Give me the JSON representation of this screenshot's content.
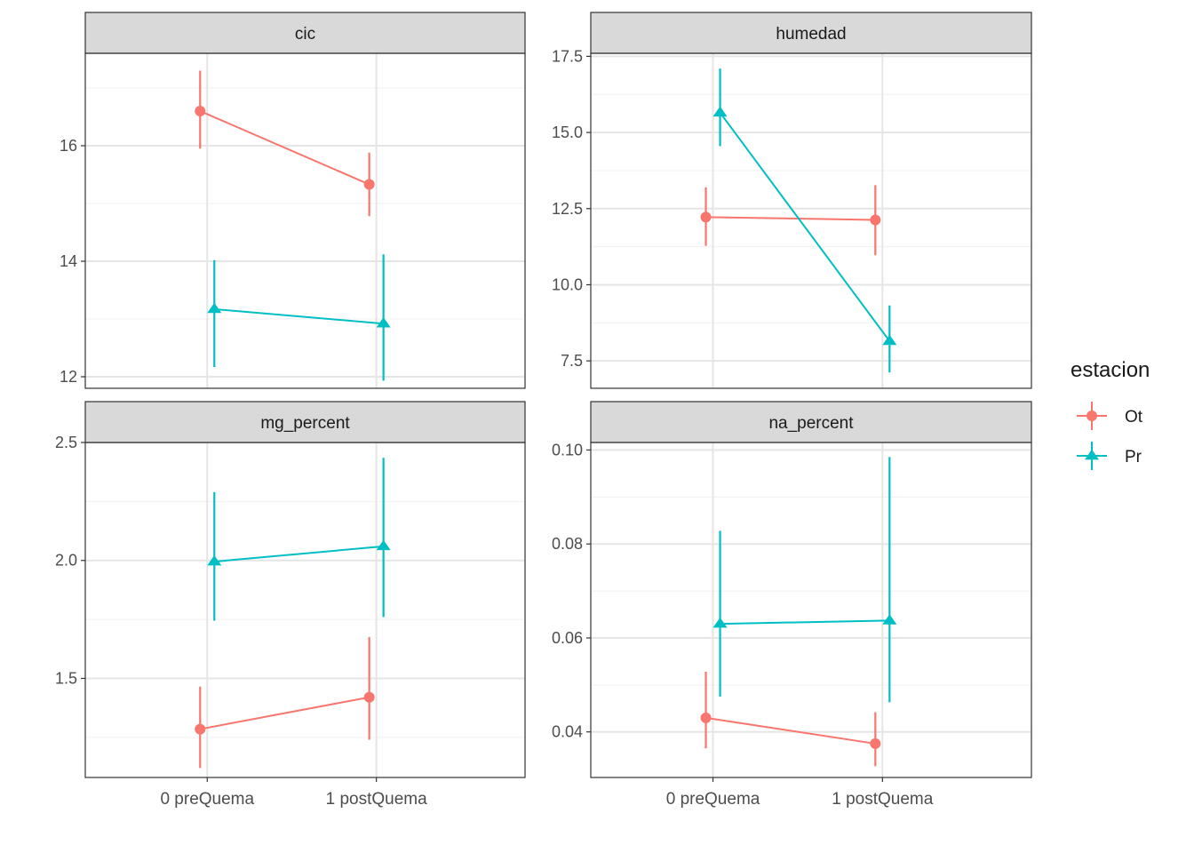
{
  "chart_data": {
    "type": "line",
    "layout": "facet-grid 2x2",
    "x_categories": [
      "0 preQuema",
      "1 postQuema"
    ],
    "legend": {
      "title": "estacion",
      "placement": "right",
      "entries": [
        {
          "name": "Ot",
          "color": "#F8766D",
          "shape": "circle"
        },
        {
          "name": "Pr",
          "color": "#00BFC4",
          "shape": "triangle"
        }
      ]
    },
    "grid": true,
    "panels": [
      {
        "title": "cic",
        "ylim": [
          11.8,
          17.6
        ],
        "y_ticks": [
          12,
          14,
          16
        ],
        "y_tick_labels": [
          "12",
          "14",
          "16"
        ],
        "show_x_axis": false,
        "series": [
          {
            "name": "Ot",
            "points": [
              {
                "x": "0 preQuema",
                "y": 16.6,
                "ymin": 15.95,
                "ymax": 17.3
              },
              {
                "x": "1 postQuema",
                "y": 15.33,
                "ymin": 14.78,
                "ymax": 15.88
              }
            ]
          },
          {
            "name": "Pr",
            "points": [
              {
                "x": "0 preQuema",
                "y": 13.17,
                "ymin": 12.17,
                "ymax": 14.02
              },
              {
                "x": "1 postQuema",
                "y": 12.92,
                "ymin": 11.93,
                "ymax": 14.12
              }
            ]
          }
        ]
      },
      {
        "title": "humedad",
        "ylim": [
          6.6,
          17.6
        ],
        "y_ticks": [
          7.5,
          10.0,
          12.5,
          15.0,
          17.5
        ],
        "y_tick_labels": [
          "7.5",
          "10.0",
          "12.5",
          "15.0",
          "17.5"
        ],
        "show_x_axis": false,
        "series": [
          {
            "name": "Ot",
            "points": [
              {
                "x": "0 preQuema",
                "y": 12.22,
                "ymin": 11.28,
                "ymax": 13.2
              },
              {
                "x": "1 postQuema",
                "y": 12.13,
                "ymin": 10.97,
                "ymax": 13.27
              }
            ]
          },
          {
            "name": "Pr",
            "points": [
              {
                "x": "0 preQuema",
                "y": 15.65,
                "ymin": 14.55,
                "ymax": 17.1
              },
              {
                "x": "1 postQuema",
                "y": 8.15,
                "ymin": 7.12,
                "ymax": 9.32
              }
            ]
          }
        ]
      },
      {
        "title": "mg_percent",
        "ylim": [
          1.08,
          2.5
        ],
        "y_ticks": [
          1.5,
          2.0,
          2.5
        ],
        "y_tick_labels": [
          "1.5",
          "2.0",
          "2.5"
        ],
        "show_x_axis": true,
        "series": [
          {
            "name": "Ot",
            "points": [
              {
                "x": "0 preQuema",
                "y": 1.285,
                "ymin": 1.12,
                "ymax": 1.465
              },
              {
                "x": "1 postQuema",
                "y": 1.42,
                "ymin": 1.24,
                "ymax": 1.675
              }
            ]
          },
          {
            "name": "Pr",
            "points": [
              {
                "x": "0 preQuema",
                "y": 1.995,
                "ymin": 1.745,
                "ymax": 2.29
              },
              {
                "x": "1 postQuema",
                "y": 2.06,
                "ymin": 1.76,
                "ymax": 2.435
              }
            ]
          }
        ]
      },
      {
        "title": "na_percent",
        "ylim": [
          0.0303,
          0.1016
        ],
        "y_ticks": [
          0.04,
          0.06,
          0.08,
          0.1
        ],
        "y_tick_labels": [
          "0.04",
          "0.06",
          "0.08",
          "0.10"
        ],
        "show_x_axis": true,
        "series": [
          {
            "name": "Ot",
            "points": [
              {
                "x": "0 preQuema",
                "y": 0.043,
                "ymin": 0.0365,
                "ymax": 0.0528
              },
              {
                "x": "1 postQuema",
                "y": 0.0375,
                "ymin": 0.0327,
                "ymax": 0.0442
              }
            ]
          },
          {
            "name": "Pr",
            "points": [
              {
                "x": "0 preQuema",
                "y": 0.063,
                "ymin": 0.0475,
                "ymax": 0.0828
              },
              {
                "x": "1 postQuema",
                "y": 0.0637,
                "ymin": 0.0463,
                "ymax": 0.0985
              }
            ]
          }
        ]
      }
    ]
  }
}
